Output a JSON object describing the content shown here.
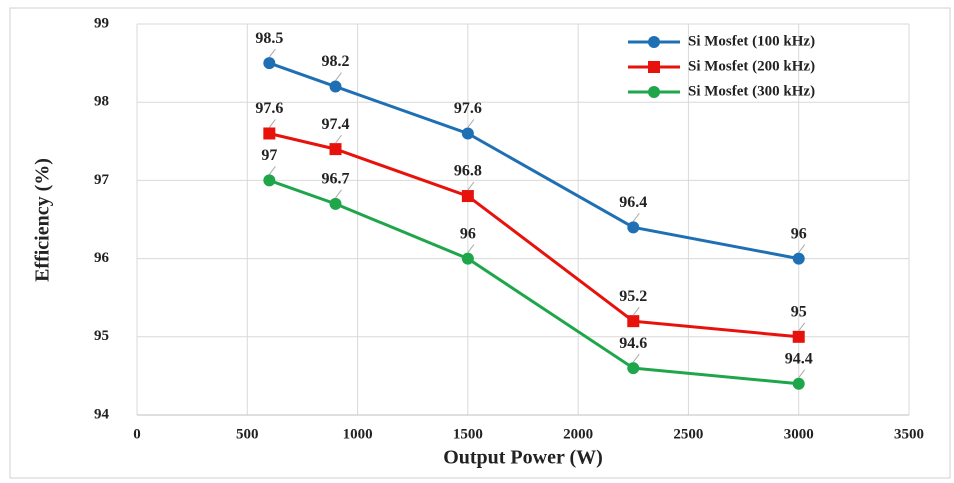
{
  "chart_data": {
    "type": "line",
    "x_label": "Output Power (W)",
    "y_label": "Efficiency (%)",
    "x": [
      600,
      900,
      1500,
      2250,
      3000
    ],
    "series": [
      {
        "name": "Si Mosfet (100 kHz)",
        "color": "#1f6fb5",
        "marker": "circle",
        "values": [
          98.5,
          98.2,
          97.6,
          96.4,
          96
        ]
      },
      {
        "name": "Si Mosfet (200 kHz)",
        "color": "#e8120c",
        "marker": "square",
        "values": [
          97.6,
          97.4,
          96.8,
          95.2,
          95
        ]
      },
      {
        "name": "Si Mosfet (300 kHz)",
        "color": "#1fa64a",
        "marker": "circle",
        "values": [
          97,
          96.7,
          96,
          94.6,
          94.4
        ]
      }
    ],
    "xlim": [
      0,
      3500
    ],
    "xticks": [
      0,
      500,
      1000,
      1500,
      2000,
      2500,
      3000,
      3500
    ],
    "ylim": [
      94,
      99
    ],
    "yticks": [
      94,
      95,
      96,
      97,
      98,
      99
    ],
    "grid": true,
    "legend": "upper right"
  }
}
